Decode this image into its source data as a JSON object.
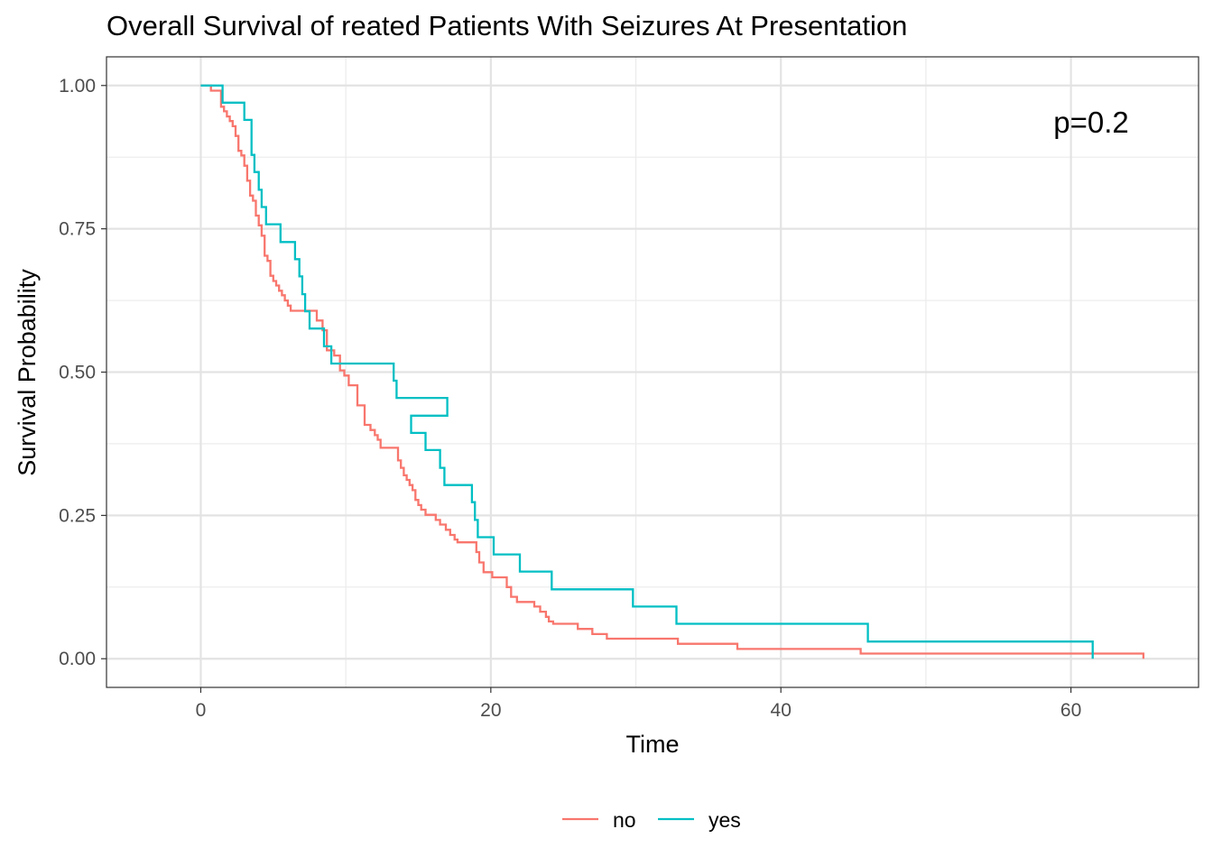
{
  "chart_data": {
    "type": "line",
    "title": "Overall Survival of reated Patients With Seizures At Presentation",
    "xlabel": "Time",
    "ylabel": "Survival Probability",
    "xlim": [
      -6.5,
      68.8
    ],
    "ylim": [
      -0.05,
      1.05
    ],
    "x_ticks": [
      0,
      20,
      40,
      60
    ],
    "x_tick_labels": [
      "0",
      "20",
      "40",
      "60"
    ],
    "y_ticks": [
      0,
      0.25,
      0.5,
      0.75,
      1.0
    ],
    "y_tick_labels": [
      "0.00",
      "0.25",
      "0.50",
      "0.75",
      "1.00"
    ],
    "grid": true,
    "legend_position": "bottom",
    "annotation": "p=0.2",
    "series": [
      {
        "name": "no",
        "color": "#F8766D",
        "x": [
          0,
          0.7,
          1.4,
          1.6,
          1.8,
          2.0,
          2.2,
          2.4,
          2.6,
          2.8,
          3.0,
          3.2,
          3.4,
          3.6,
          3.8,
          4.0,
          4.2,
          4.4,
          4.6,
          4.8,
          5.0,
          5.2,
          5.4,
          5.6,
          5.8,
          6.0,
          6.2,
          6.4,
          6.6,
          6.8,
          7.2,
          8.0,
          8.4,
          8.7,
          9.2,
          9.6,
          9.9,
          10.2,
          10.8,
          11.3,
          11.7,
          12.0,
          12.2,
          12.4,
          12.7,
          13.6,
          13.8,
          14.0,
          14.2,
          14.4,
          14.6,
          14.8,
          15.0,
          15.2,
          15.5,
          16.2,
          16.5,
          16.9,
          17.2,
          17.5,
          17.7,
          19.0,
          19.2,
          19.5,
          20.1,
          21.1,
          21.4,
          21.8,
          23.0,
          23.4,
          23.8,
          24.0,
          24.3,
          26.0,
          27.0,
          28.0,
          32.9,
          37.0,
          45.5,
          65.0
        ],
        "y": [
          1.0,
          0.991,
          0.963,
          0.955,
          0.946,
          0.938,
          0.929,
          0.912,
          0.886,
          0.878,
          0.86,
          0.834,
          0.808,
          0.799,
          0.773,
          0.756,
          0.738,
          0.703,
          0.694,
          0.668,
          0.659,
          0.651,
          0.642,
          0.634,
          0.625,
          0.616,
          0.607,
          0.607,
          0.607,
          0.607,
          0.607,
          0.59,
          0.573,
          0.538,
          0.529,
          0.503,
          0.494,
          0.477,
          0.442,
          0.408,
          0.399,
          0.39,
          0.382,
          0.368,
          0.368,
          0.346,
          0.333,
          0.32,
          0.312,
          0.303,
          0.294,
          0.277,
          0.268,
          0.26,
          0.251,
          0.242,
          0.234,
          0.225,
          0.216,
          0.208,
          0.203,
          0.186,
          0.168,
          0.151,
          0.142,
          0.125,
          0.108,
          0.099,
          0.091,
          0.082,
          0.073,
          0.065,
          0.061,
          0.052,
          0.043,
          0.035,
          0.026,
          0.017,
          0.009,
          0.0
        ]
      },
      {
        "name": "yes",
        "color": "#00BFC4",
        "x": [
          0,
          1.5,
          3.0,
          3.5,
          3.7,
          4.0,
          4.2,
          4.5,
          5.5,
          6.5,
          6.8,
          7.0,
          7.2,
          7.5,
          8.5,
          9.0,
          13.3,
          13.5,
          17.0,
          14.5,
          15.5,
          16.5,
          16.8,
          18.7,
          18.9,
          19.1,
          20.2,
          22.0,
          24.2,
          29.8,
          32.8,
          46.0,
          61.5
        ],
        "y": [
          1.0,
          0.97,
          0.94,
          0.879,
          0.849,
          0.818,
          0.788,
          0.758,
          0.727,
          0.697,
          0.667,
          0.636,
          0.606,
          0.576,
          0.545,
          0.515,
          0.485,
          0.455,
          0.424,
          0.394,
          0.364,
          0.333,
          0.303,
          0.273,
          0.242,
          0.212,
          0.182,
          0.152,
          0.121,
          0.091,
          0.061,
          0.03,
          0.0
        ]
      }
    ]
  }
}
